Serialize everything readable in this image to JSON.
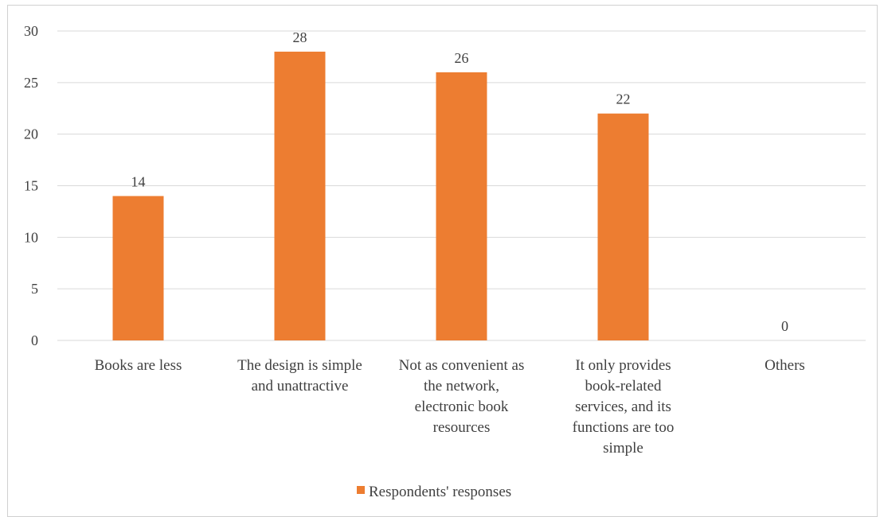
{
  "chart_data": {
    "type": "bar",
    "categories": [
      [
        "Books are less"
      ],
      [
        "The design is simple",
        "and unattractive"
      ],
      [
        "Not as convenient as",
        "the network,",
        "electronic book",
        "resources"
      ],
      [
        "It only provides",
        "book-related",
        "services, and its",
        "functions are too",
        "simple"
      ],
      [
        "Others"
      ]
    ],
    "series": [
      {
        "name": "Respondents' responses",
        "values": [
          14,
          28,
          26,
          22,
          0
        ],
        "color": "#ED7D31"
      }
    ],
    "ylim": [
      0,
      30
    ],
    "yticks": [
      0,
      5,
      10,
      15,
      20,
      25,
      30
    ],
    "grid": true,
    "data_labels": true,
    "legend_position": "bottom"
  }
}
